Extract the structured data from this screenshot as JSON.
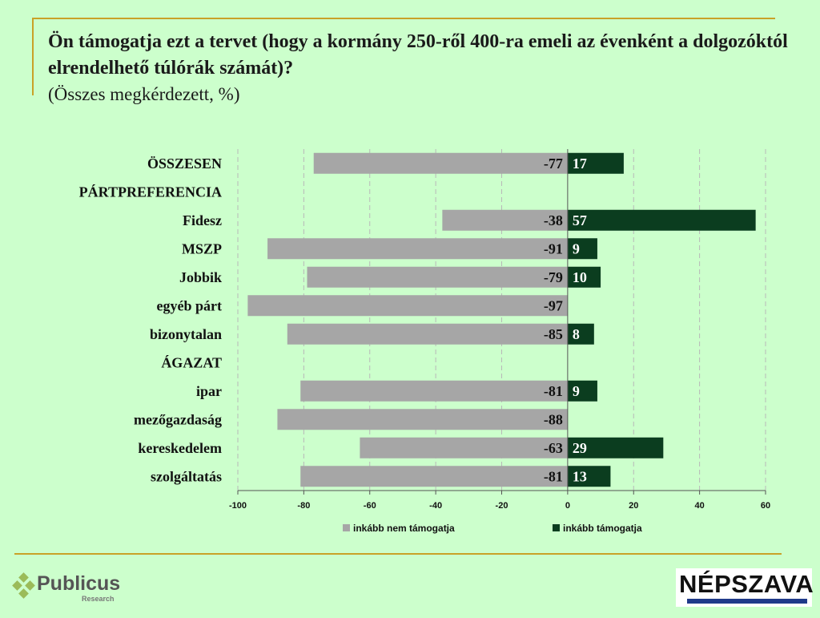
{
  "header": {
    "title": "Ön támogatja ezt a tervet (hogy a kormány 250-ről 400-ra emeli az évenként a dolgozóktól elrendelhető túlórák számát)?",
    "subtitle": "(Összes megkérdezett, %)"
  },
  "chart_data": {
    "type": "bar",
    "orientation": "horizontal",
    "stacked": "diverging",
    "categories": [
      "ÖSSZESEN",
      "PÁRTPREFERENCIA",
      "Fidesz",
      "MSZP",
      "Jobbik",
      "egyéb párt",
      "bizonytalan",
      "ÁGAZAT",
      "ipar",
      "mezőgazdaság",
      "kereskedelem",
      "szolgáltatás"
    ],
    "series": [
      {
        "name": "inkább nem támogatja",
        "color": "#a6a6a6",
        "label_color": "#111111",
        "values": [
          -77,
          null,
          -38,
          -91,
          -79,
          -97,
          -85,
          null,
          -81,
          -88,
          -63,
          -81
        ]
      },
      {
        "name": "inkább támogatja",
        "color": "#0b3d1f",
        "label_color": "#ffffff",
        "values": [
          17,
          null,
          57,
          9,
          10,
          null,
          8,
          null,
          9,
          null,
          29,
          13
        ]
      }
    ],
    "xlim": [
      -100,
      60
    ],
    "xticks": [
      -100,
      -80,
      -60,
      -40,
      -20,
      0,
      20,
      40,
      60
    ],
    "grid": "vertical dashed",
    "legend_position": "bottom"
  },
  "logos": {
    "publicus": {
      "name": "Publicus",
      "sub": "Research",
      "color": "#9bbb59"
    },
    "nepszava": {
      "name": "NÉPSZAVA"
    }
  }
}
